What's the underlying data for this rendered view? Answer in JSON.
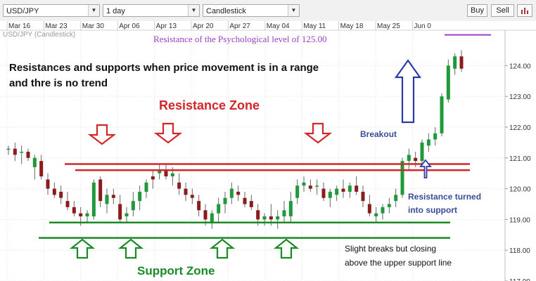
{
  "toolbar": {
    "symbol": "USD/JPY",
    "interval": "1 day",
    "chart_type": "Candlestick",
    "buy_label": "Buy",
    "sell_label": "Sell"
  },
  "chart_data": {
    "type": "candlestick",
    "symbol_label": "USD/JPY (Candlestick)",
    "x_tick_labels": [
      "Mar 16",
      "Mar 23",
      "Mar 30",
      "Apr 06",
      "Apr 13",
      "Apr 20",
      "Apr 27",
      "May 04",
      "May 11",
      "May 18",
      "May 25",
      "Jun 0"
    ],
    "y_tick_labels": [
      "124.00",
      "123.00",
      "122.00",
      "121.00",
      "120.00",
      "119.00",
      "118.00",
      "117.00"
    ],
    "y_ticks": [
      124,
      123,
      122,
      121,
      120,
      119,
      118,
      117
    ],
    "ylim": [
      117,
      125.15
    ],
    "grid": true,
    "colors": {
      "up": "#1f9a3a",
      "down": "#8c1c1c",
      "resistance": "#d2262a",
      "support": "#1a8a25",
      "psych": "#9a3fbf",
      "arrow": "#2c3aa5"
    },
    "candles": [
      [
        121.3,
        121.4,
        121.1,
        121.3
      ],
      [
        121.3,
        121.5,
        120.9,
        121.1
      ],
      [
        121.2,
        121.4,
        120.8,
        121.2
      ],
      [
        121.2,
        121.3,
        120.9,
        121.0
      ],
      [
        120.7,
        121.1,
        120.3,
        121.0
      ],
      [
        120.9,
        121.1,
        120.3,
        120.4
      ],
      [
        120.3,
        120.5,
        119.8,
        120.0
      ],
      [
        120.0,
        120.2,
        119.7,
        119.8
      ],
      [
        119.9,
        120.1,
        119.5,
        119.7
      ],
      [
        119.6,
        119.9,
        119.3,
        119.4
      ],
      [
        119.4,
        119.6,
        119.1,
        119.2
      ],
      [
        119.2,
        119.4,
        118.8,
        119.1
      ],
      [
        119.1,
        119.3,
        118.9,
        119.2
      ],
      [
        119.1,
        120.3,
        119.0,
        120.2
      ],
      [
        120.3,
        120.4,
        119.4,
        119.6
      ],
      [
        119.5,
        120.0,
        119.2,
        119.8
      ],
      [
        119.8,
        120.0,
        119.5,
        119.7
      ],
      [
        119.5,
        119.8,
        118.9,
        119.0
      ],
      [
        119.1,
        119.4,
        118.9,
        119.2
      ],
      [
        119.3,
        119.9,
        119.1,
        119.6
      ],
      [
        119.6,
        120.1,
        119.3,
        119.9
      ],
      [
        119.9,
        120.3,
        119.7,
        120.2
      ],
      [
        120.4,
        120.6,
        120.0,
        120.3
      ],
      [
        120.5,
        120.8,
        120.3,
        120.6
      ],
      [
        120.6,
        120.8,
        120.3,
        120.4
      ],
      [
        120.4,
        120.7,
        120.1,
        120.5
      ],
      [
        120.2,
        120.5,
        119.8,
        120.0
      ],
      [
        120.0,
        120.2,
        119.6,
        119.8
      ],
      [
        119.8,
        120.0,
        119.5,
        119.7
      ],
      [
        119.6,
        119.8,
        119.1,
        119.3
      ],
      [
        119.3,
        119.5,
        118.8,
        119.0
      ],
      [
        118.9,
        119.3,
        118.7,
        119.2
      ],
      [
        119.2,
        119.7,
        118.9,
        119.5
      ],
      [
        119.5,
        119.9,
        119.2,
        119.7
      ],
      [
        119.7,
        120.2,
        119.5,
        120.0
      ],
      [
        119.9,
        120.1,
        119.6,
        119.8
      ],
      [
        119.7,
        119.9,
        119.4,
        119.5
      ],
      [
        119.6,
        119.8,
        119.3,
        119.4
      ],
      [
        119.3,
        119.5,
        118.8,
        119.0
      ],
      [
        119.0,
        119.2,
        118.8,
        119.1
      ],
      [
        119.1,
        119.5,
        118.8,
        119.0
      ],
      [
        119.0,
        119.3,
        118.7,
        119.1
      ],
      [
        119.1,
        119.6,
        118.9,
        119.3
      ],
      [
        119.1,
        119.9,
        118.9,
        119.6
      ],
      [
        119.7,
        120.3,
        119.5,
        120.1
      ],
      [
        120.1,
        120.4,
        119.9,
        120.2
      ],
      [
        120.1,
        120.3,
        119.9,
        120.0
      ],
      [
        120.1,
        120.3,
        119.8,
        120.1
      ],
      [
        120.0,
        120.2,
        119.6,
        119.7
      ],
      [
        119.7,
        120.0,
        119.4,
        119.9
      ],
      [
        119.8,
        120.1,
        119.6,
        120.0
      ],
      [
        120.0,
        120.3,
        119.7,
        119.9
      ],
      [
        119.9,
        120.2,
        119.7,
        120.1
      ],
      [
        120.1,
        120.4,
        119.8,
        119.9
      ],
      [
        119.9,
        120.1,
        119.4,
        119.6
      ],
      [
        119.5,
        119.8,
        119.1,
        119.2
      ],
      [
        119.1,
        119.4,
        118.9,
        119.2
      ],
      [
        119.2,
        119.5,
        119.0,
        119.4
      ],
      [
        119.4,
        119.7,
        119.2,
        119.5
      ],
      [
        119.6,
        120.0,
        119.4,
        119.8
      ],
      [
        119.8,
        121.0,
        119.7,
        120.9
      ],
      [
        120.9,
        121.3,
        120.6,
        121.1
      ],
      [
        121.0,
        121.2,
        120.7,
        120.9
      ],
      [
        120.9,
        121.6,
        120.8,
        121.5
      ],
      [
        121.4,
        121.8,
        121.2,
        121.6
      ],
      [
        121.6,
        122.0,
        121.4,
        121.8
      ],
      [
        121.8,
        123.1,
        121.7,
        123.0
      ],
      [
        122.9,
        124.2,
        122.8,
        124.0
      ],
      [
        123.9,
        124.4,
        123.7,
        124.3
      ],
      [
        124.3,
        124.5,
        123.8,
        123.9
      ]
    ],
    "lines": {
      "resistance_upper": 120.8,
      "resistance_lower": 120.6,
      "support_upper": 118.9,
      "support_lower": 118.4,
      "psychological": 125.0
    },
    "annotations": {
      "psych_label": "Resistance of the Psychological level of 125.00",
      "range_line1": "Resistances and supports when price movement is in a range",
      "range_line2": "and thre is no trend",
      "resistance_zone": "Resistance Zone",
      "breakout": "Breakout",
      "turned_line1": "Resistance turned",
      "turned_line2": "into support",
      "support_zone": "Support Zone",
      "slight_line1": "Slight breaks but closing",
      "slight_line2": "above the upper support line"
    }
  }
}
